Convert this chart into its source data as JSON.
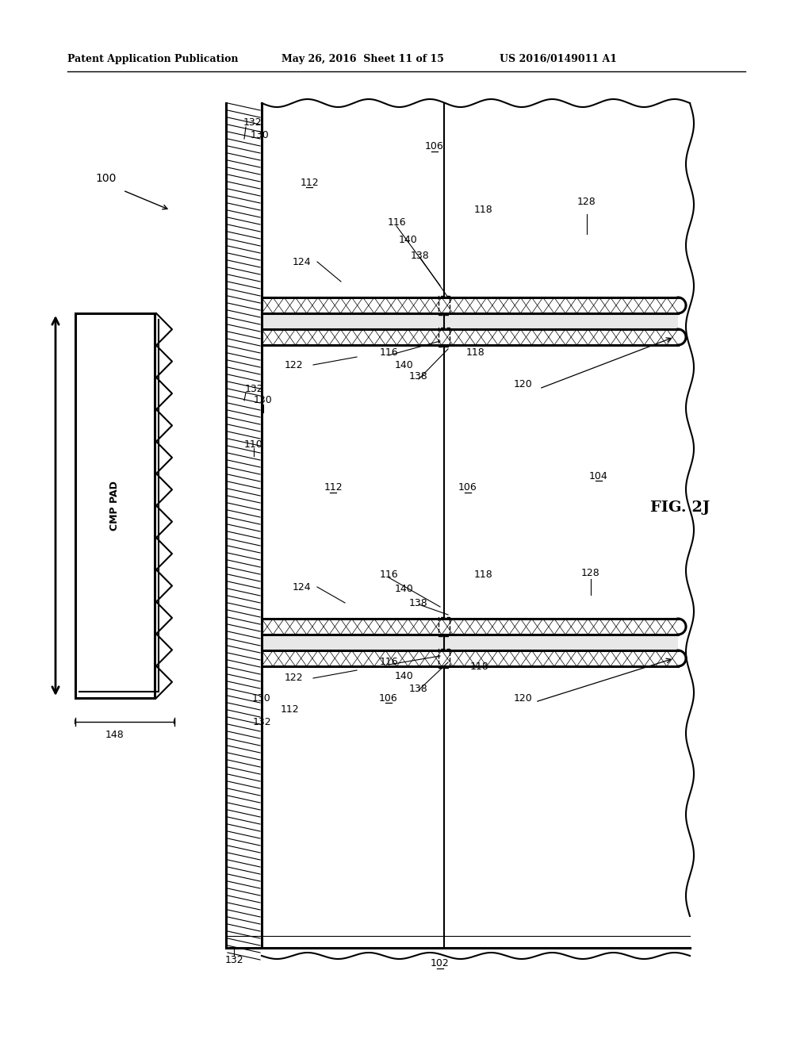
{
  "title_left": "Patent Application Publication",
  "title_mid": "May 26, 2016  Sheet 11 of 15",
  "title_right": "US 2016/0149011 A1",
  "fig_label": "FIG. 2J",
  "bg_color": "#ffffff",
  "line_color": "#000000"
}
